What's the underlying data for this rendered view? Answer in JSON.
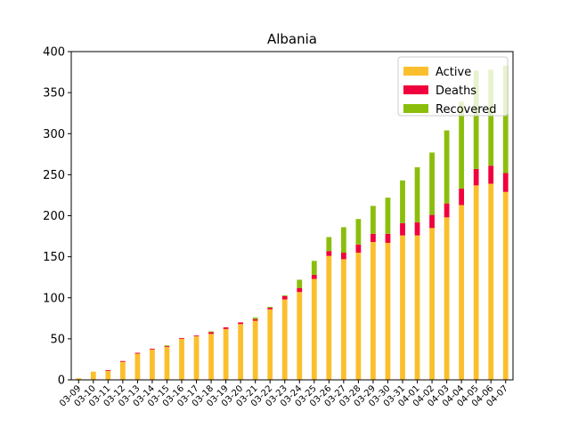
{
  "chart_data": {
    "type": "bar",
    "stacked": true,
    "title": "Albania",
    "xlabel": "",
    "ylabel": "",
    "ylim": [
      0,
      400
    ],
    "yticks": [
      0,
      50,
      100,
      150,
      200,
      250,
      300,
      350,
      400
    ],
    "grid": false,
    "legend_placement": "top-right",
    "categories": [
      "03-09",
      "03-10",
      "03-11",
      "03-12",
      "03-13",
      "03-14",
      "03-15",
      "03-16",
      "03-17",
      "03-18",
      "03-19",
      "03-20",
      "03-21",
      "03-22",
      "03-23",
      "03-24",
      "03-25",
      "03-26",
      "03-27",
      "03-28",
      "03-29",
      "03-30",
      "03-31",
      "04-01",
      "04-02",
      "04-03",
      "04-04",
      "04-05",
      "04-06",
      "04-07"
    ],
    "series": [
      {
        "name": "Active",
        "color": "#FBBF2E",
        "values": [
          2,
          10,
          11,
          22,
          32,
          37,
          40,
          50,
          53,
          56,
          62,
          68,
          72,
          86,
          98,
          107,
          123,
          151,
          147,
          155,
          168,
          167,
          176,
          176,
          185,
          198,
          213,
          237,
          239,
          229
        ]
      },
      {
        "name": "Deaths",
        "color": "#F0003C",
        "values": [
          0,
          0,
          1,
          1,
          1,
          1,
          1,
          1,
          1,
          2,
          2,
          2,
          2,
          2,
          4,
          5,
          5,
          6,
          8,
          10,
          10,
          11,
          15,
          16,
          16,
          17,
          20,
          20,
          22,
          23
        ]
      },
      {
        "name": "Recovered",
        "color": "#8BBE0C",
        "values": [
          0,
          0,
          0,
          0,
          0,
          0,
          1,
          0,
          0,
          1,
          0,
          0,
          2,
          1,
          1,
          10,
          17,
          17,
          31,
          31,
          34,
          44,
          52,
          67,
          76,
          89,
          106,
          120,
          117,
          131
        ]
      }
    ]
  }
}
